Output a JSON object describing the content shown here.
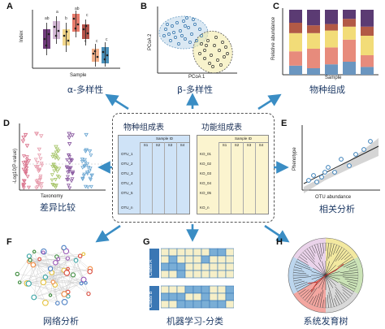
{
  "panels": {
    "A": {
      "letter": "A",
      "caption": "α-多样性",
      "ylabel": "Index",
      "xlabel": "Sample",
      "sig": [
        "ab",
        "a",
        "b",
        "c",
        "c",
        "c",
        "ab",
        "c"
      ]
    },
    "B": {
      "letter": "B",
      "caption": "β-多样性",
      "ylabel": "PCoA 2",
      "xlabel": "PCoA 1"
    },
    "C": {
      "letter": "C",
      "caption": "物种组成",
      "ylabel": "Relative abundance",
      "xlabel": "Sample"
    },
    "D": {
      "letter": "D",
      "caption": "差异比较",
      "ylabel": "-Log10(P-value)",
      "xlabel": "Taxonomy"
    },
    "E": {
      "letter": "E",
      "caption": "相关分析",
      "ylabel": "Phenotype",
      "xlabel": "OTU abundance"
    },
    "F": {
      "letter": "F",
      "caption": "网络分析"
    },
    "G": {
      "letter": "G",
      "caption": "机器学习-分类",
      "classA": "Class A",
      "classB": "Class B"
    },
    "H": {
      "letter": "H",
      "caption": "系统发育树"
    }
  },
  "center": {
    "left_title": "物种组成表",
    "right_title": "功能组成表",
    "left_table": {
      "header": "Sample ID",
      "cols": [
        "S1",
        "S2",
        "S3",
        "S4"
      ],
      "rows": [
        "OTU_1",
        "OTU_2",
        "OTU_3",
        "OTU_4",
        "OTU_5",
        "OTU_n"
      ]
    },
    "right_table": {
      "header": "Sample ID",
      "cols": [
        "S1",
        "S2",
        "S3",
        "S4"
      ],
      "rows": [
        "KO_01",
        "KO_02",
        "KO_03",
        "KO_04",
        "KO_05",
        "KO_n"
      ]
    }
  },
  "colors": {
    "arrow": "#3a8dc4",
    "caption": "#1f3b66",
    "left_table_fill": "#cfe3f7",
    "right_table_fill": "#fbf4cf",
    "cell_blue": "#7aaed6",
    "cell_cream": "#f6efc8",
    "bar_segments": [
      "#6b96c0",
      "#e78b7c",
      "#f2dc78",
      "#b25a46",
      "#5b3b73"
    ]
  }
}
